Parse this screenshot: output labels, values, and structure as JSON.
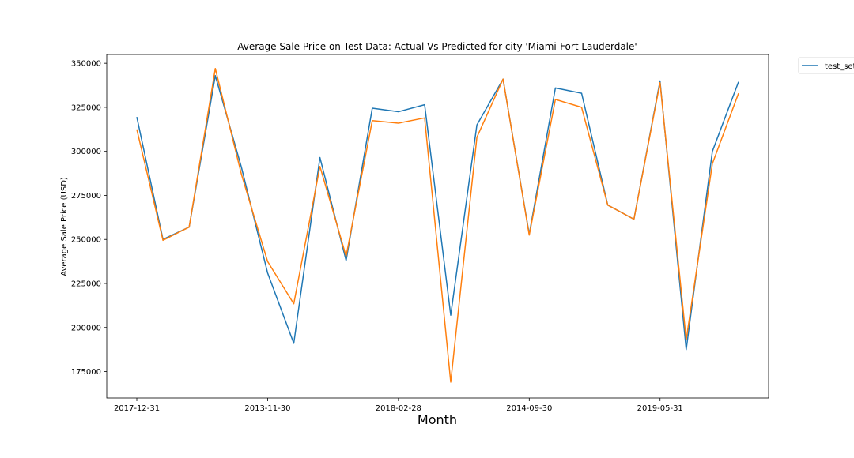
{
  "chart_data": {
    "type": "line",
    "title": "Average Sale Price on Test Data: Actual Vs Predicted for city 'Miami-Fort Lauderdale'",
    "xlabel": "Month",
    "ylabel": "Average Sale Price (USD)",
    "ylim": [
      160000,
      355000
    ],
    "y_ticks": [
      175000,
      200000,
      225000,
      250000,
      275000,
      300000,
      325000,
      350000
    ],
    "x_tick_labels": [
      {
        "index": 0,
        "label": "2017-12-31"
      },
      {
        "index": 5,
        "label": "2013-11-30"
      },
      {
        "index": 10,
        "label": "2018-02-28"
      },
      {
        "index": 15,
        "label": "2014-09-30"
      },
      {
        "index": 20,
        "label": "2019-05-31"
      }
    ],
    "legend_position": "outside-top-right",
    "grid": false,
    "series": [
      {
        "name": "test_set",
        "color": "#1f77b4",
        "values": [
          319500,
          250000,
          257000,
          343000,
          291000,
          231000,
          191000,
          296500,
          238000,
          324500,
          322500,
          326500,
          207000,
          315000,
          341000,
          253000,
          336000,
          333000,
          269500,
          261500,
          340000,
          187500,
          300000,
          339500
        ]
      },
      {
        "color": "#ff7f0e",
        "values": [
          312500,
          249500,
          257000,
          347000,
          287000,
          237500,
          213500,
          291500,
          240500,
          317500,
          316000,
          319000,
          169000,
          308000,
          341000,
          252500,
          329500,
          325000,
          269500,
          261500,
          339000,
          193000,
          293000,
          333000
        ]
      }
    ]
  }
}
